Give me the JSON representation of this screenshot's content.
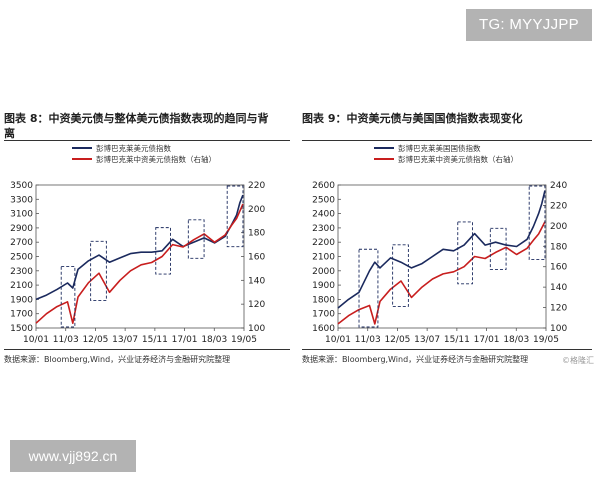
{
  "watermarks": {
    "top": "TG: MYYJJPP",
    "bottom": "www.vjj892.cn"
  },
  "captions": {
    "left_line1": "图表 8：中资美元债与整体美元债指数表现的趋同与背",
    "left_line2": "离",
    "right": "图表 9：中资美元债与美国国债指数表现变化"
  },
  "sources": {
    "left": "数据来源：Bloomberg,Wind，兴业证券经济与金融研究院整理",
    "right": "数据来源：Bloomberg,Wind，兴业证券经济与金融研究院整理"
  },
  "credit": "©格隆汇",
  "colors": {
    "navy": "#1b2a5e",
    "red": "#c81e1e"
  },
  "chart_data": [
    {
      "type": "line",
      "legend": [
        "彭博巴克莱美元债指数",
        "彭博巴克莱中资美元债指数（右轴）"
      ],
      "x_ticks": [
        "10/01",
        "11/03",
        "12/05",
        "13/07",
        "15/11",
        "17/01",
        "18/03",
        "19/05"
      ],
      "x_range": [
        2010.0,
        2019.9
      ],
      "left_axis": {
        "range": [
          1500,
          3500
        ],
        "ticks": [
          1500,
          1700,
          1900,
          2100,
          2300,
          2500,
          2700,
          2900,
          3100,
          3300,
          3500
        ]
      },
      "right_axis": {
        "range": [
          100,
          220
        ],
        "ticks": [
          100,
          120,
          140,
          160,
          180,
          200,
          220
        ]
      },
      "series": [
        {
          "name": "彭博巴克莱美元债指数",
          "axis": "left",
          "color": "#1b2a5e",
          "x": [
            2010.0,
            2010.5,
            2011.0,
            2011.5,
            2011.75,
            2012.0,
            2012.5,
            2013.0,
            2013.5,
            2014.0,
            2014.5,
            2015.0,
            2015.5,
            2016.0,
            2016.5,
            2017.0,
            2017.5,
            2018.0,
            2018.5,
            2019.0,
            2019.3,
            2019.55,
            2019.7,
            2019.85
          ],
          "y": [
            1900,
            1960,
            2040,
            2130,
            2060,
            2320,
            2440,
            2520,
            2420,
            2480,
            2540,
            2560,
            2560,
            2580,
            2740,
            2640,
            2700,
            2760,
            2690,
            2780,
            2940,
            3080,
            3250,
            3360
          ]
        },
        {
          "name": "彭博巴克莱中资美元债指数（右轴）",
          "axis": "right",
          "color": "#c81e1e",
          "x": [
            2010.0,
            2010.5,
            2011.0,
            2011.5,
            2011.75,
            2012.0,
            2012.5,
            2013.0,
            2013.5,
            2014.0,
            2014.5,
            2015.0,
            2015.5,
            2016.0,
            2016.5,
            2017.0,
            2017.5,
            2018.0,
            2018.5,
            2019.0,
            2019.3,
            2019.55,
            2019.7,
            2019.85
          ],
          "y": [
            104,
            112,
            118,
            122,
            104,
            126,
            138,
            146,
            130,
            140,
            148,
            153,
            155,
            160,
            170,
            168,
            174,
            179,
            172,
            178,
            186,
            192,
            198,
            204
          ]
        }
      ],
      "highlight_periods": [
        [
          2011.2,
          2011.85
        ],
        [
          2012.6,
          2013.35
        ],
        [
          2015.7,
          2016.4
        ],
        [
          2017.25,
          2018.0
        ],
        [
          2019.1,
          2019.85
        ]
      ]
    },
    {
      "type": "line",
      "legend": [
        "彭博巴克莱美国国债指数",
        "彭博巴克莱中资美元债指数（右轴）"
      ],
      "x_ticks": [
        "10/01",
        "11/03",
        "12/05",
        "13/07",
        "15/11",
        "17/01",
        "18/03",
        "19/05"
      ],
      "x_range": [
        2010.0,
        2019.9
      ],
      "left_axis": {
        "range": [
          1600,
          2600
        ],
        "ticks": [
          1600,
          1700,
          1800,
          1900,
          2000,
          2100,
          2200,
          2300,
          2400,
          2500,
          2600
        ]
      },
      "right_axis": {
        "range": [
          100,
          240
        ],
        "ticks": [
          100,
          120,
          140,
          160,
          180,
          200,
          220,
          240
        ]
      },
      "series": [
        {
          "name": "彭博巴克莱美国国债指数",
          "axis": "left",
          "color": "#1b2a5e",
          "x": [
            2010.0,
            2010.5,
            2011.0,
            2011.5,
            2011.75,
            2012.0,
            2012.5,
            2013.0,
            2013.5,
            2014.0,
            2014.5,
            2015.0,
            2015.5,
            2016.0,
            2016.5,
            2017.0,
            2017.5,
            2018.0,
            2018.5,
            2019.0,
            2019.3,
            2019.55,
            2019.7,
            2019.85
          ],
          "y": [
            1740,
            1800,
            1850,
            2000,
            2060,
            2020,
            2090,
            2060,
            2020,
            2050,
            2100,
            2150,
            2140,
            2180,
            2260,
            2180,
            2200,
            2180,
            2170,
            2220,
            2310,
            2400,
            2470,
            2560
          ]
        },
        {
          "name": "彭博巴克莱中资美元债指数（右轴）",
          "axis": "right",
          "color": "#c81e1e",
          "x": [
            2010.0,
            2010.5,
            2011.0,
            2011.5,
            2011.75,
            2012.0,
            2012.5,
            2013.0,
            2013.5,
            2014.0,
            2014.5,
            2015.0,
            2015.5,
            2016.0,
            2016.5,
            2017.0,
            2017.5,
            2018.0,
            2018.5,
            2019.0,
            2019.3,
            2019.55,
            2019.7,
            2019.85
          ],
          "y": [
            104,
            112,
            118,
            122,
            104,
            126,
            138,
            146,
            130,
            140,
            148,
            153,
            155,
            160,
            170,
            168,
            174,
            179,
            172,
            178,
            186,
            192,
            198,
            204
          ]
        }
      ],
      "highlight_periods": [
        [
          2011.0,
          2011.9
        ],
        [
          2012.6,
          2013.35
        ],
        [
          2015.7,
          2016.4
        ],
        [
          2017.25,
          2018.0
        ],
        [
          2019.1,
          2019.85
        ]
      ]
    }
  ]
}
